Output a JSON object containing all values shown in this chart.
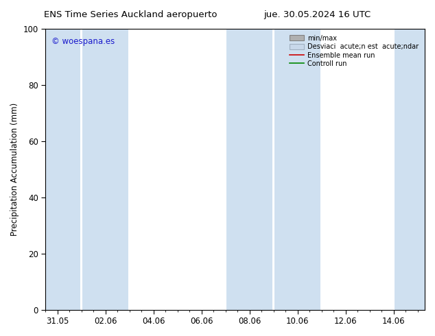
{
  "title_left": "ENS Time Series Auckland aeropuerto",
  "title_right": "jue. 30.05.2024 16 UTC",
  "ylabel": "Precipitation Accumulation (mm)",
  "ylim": [
    0,
    100
  ],
  "yticks": [
    0,
    20,
    40,
    60,
    80,
    100
  ],
  "watermark": "© woespana.es",
  "watermark_color": "#1a1acc",
  "background_color": "#ffffff",
  "plot_bg_color": "#ffffff",
  "shade_color": "#cfe0f0",
  "x_tick_labels": [
    "31.05",
    "02.06",
    "04.06",
    "06.06",
    "08.06",
    "10.06",
    "12.06",
    "14.06"
  ],
  "x_tick_positions": [
    0.0,
    2.0,
    4.0,
    6.0,
    8.0,
    10.0,
    12.0,
    14.0
  ],
  "xlim": [
    -0.5,
    15.3
  ],
  "shade_regions": [
    {
      "xmin": -0.5,
      "xmax": 0.95,
      "color": "#cfe0f0"
    },
    {
      "xmin": 1.05,
      "xmax": 2.95,
      "color": "#cfe0f0"
    },
    {
      "xmin": 7.05,
      "xmax": 8.95,
      "color": "#cfe0f0"
    },
    {
      "xmin": 9.05,
      "xmax": 10.95,
      "color": "#cfe0f0"
    },
    {
      "xmin": 14.05,
      "xmax": 15.3,
      "color": "#cfe0f0"
    }
  ],
  "legend_label_minmax": "min/max",
  "legend_label_desv": "Desviaci  acute;n est  acute;ndar",
  "legend_label_ensemble": "Ensemble mean run",
  "legend_label_control": "Controll run",
  "legend_color_minmax": "#b0b0b0",
  "legend_color_desv": "#c8d8ea",
  "legend_color_ensemble": "#cc0000",
  "legend_color_control": "#008800"
}
